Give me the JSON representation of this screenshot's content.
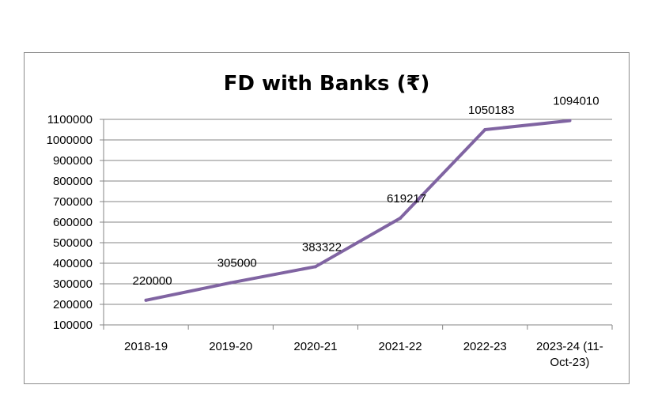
{
  "chart_data": {
    "type": "line",
    "title": "FD with Banks (₹)",
    "xlabel": "",
    "ylabel": "",
    "categories": [
      "2018-19",
      "2019-20",
      "2020-21",
      "2021-22",
      "2022-23",
      "2023-24 (11-Oct-23)"
    ],
    "category_lines": [
      [
        "2018-19"
      ],
      [
        "2019-20"
      ],
      [
        "2020-21"
      ],
      [
        "2021-22"
      ],
      [
        "2022-23"
      ],
      [
        "2023-24 (11-",
        "Oct-23)"
      ]
    ],
    "series": [
      {
        "values": [
          220000,
          305000,
          383322,
          619217,
          1050183,
          1094010
        ],
        "labels": [
          "220000",
          "305000",
          "383322",
          "619217",
          "1050183",
          "1094010"
        ],
        "color": "#8064a2"
      }
    ],
    "ylim": [
      100000,
      1100000
    ],
    "yticks": [
      100000,
      200000,
      300000,
      400000,
      500000,
      600000,
      700000,
      800000,
      900000,
      1000000,
      1100000
    ],
    "ytick_labels": [
      "100000",
      "200000",
      "300000",
      "400000",
      "500000",
      "600000",
      "700000",
      "800000",
      "900000",
      "1000000",
      "1100000"
    ],
    "grid": true,
    "legend": "none"
  }
}
